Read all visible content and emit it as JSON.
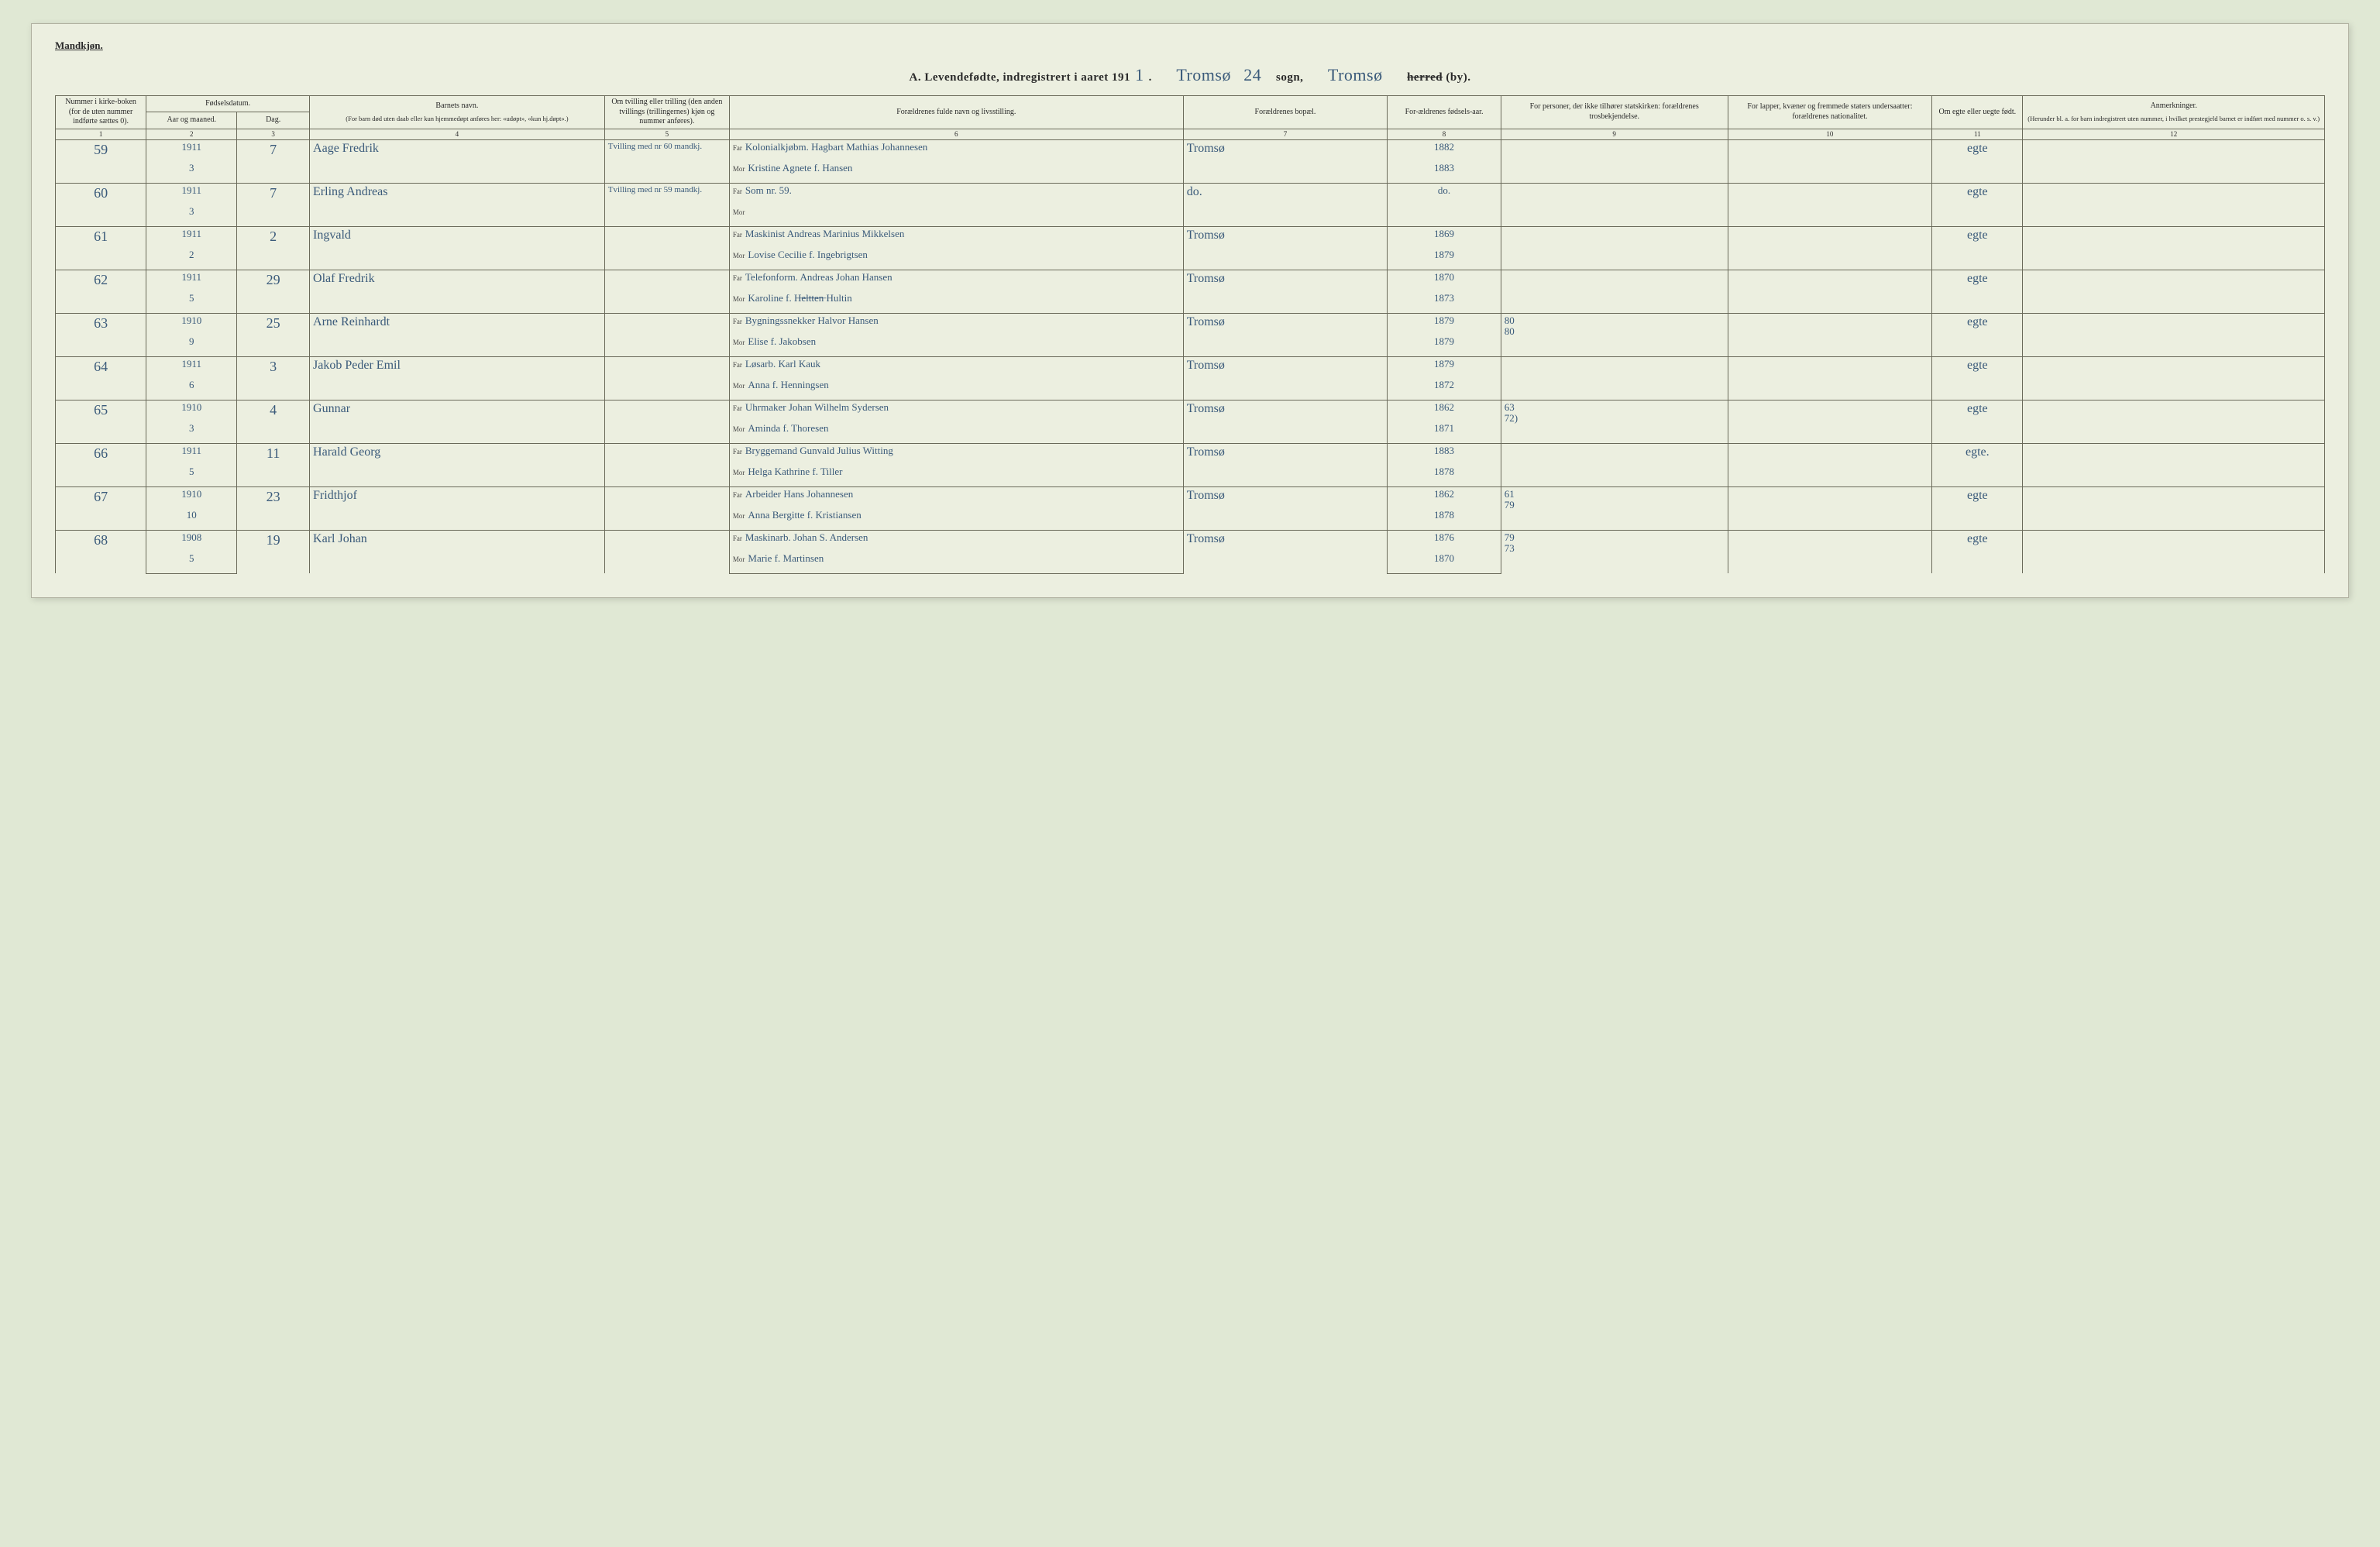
{
  "header": {
    "gender_label": "Mandkjøn.",
    "title_prefix": "A. Levendefødte, indregistrert i aaret 191",
    "year_suffix": "1",
    "title_period": ".",
    "sogn_hand": "Tromsø",
    "page_number_hand": "24",
    "sogn_label": "sogn,",
    "herred_hand": "Tromsø",
    "herred_struck": "herred",
    "by_label": "(by)."
  },
  "columns": {
    "c1": "Nummer i kirke-boken (for de uten nummer indførte sættes 0).",
    "c2_group": "Fødselsdatum.",
    "c2": "Aar og maaned.",
    "c3": "Dag.",
    "c4_title": "Barnets navn.",
    "c4_sub": "(For barn død uten daab eller kun hjemmedøpt anføres her: «udøpt», «kun hj.døpt».)",
    "c5": "Om tvilling eller trilling (den anden tvillings (trillingernes) kjøn og nummer anføres).",
    "c6": "Forældrenes fulde navn og livsstilling.",
    "c7": "Forældrenes bopæl.",
    "c8": "For-ældrenes fødsels-aar.",
    "c9": "For personer, der ikke tilhører statskirken: forældrenes trosbekjendelse.",
    "c10": "For lapper, kvæner og fremmede staters undersaatter: forældrenes nationalitet.",
    "c11": "Om egte eller uegte født.",
    "c12_title": "Anmerkninger.",
    "c12_sub": "(Herunder bl. a. for barn indregistrert uten nummer, i hvilket prestegjeld barnet er indført med nummer o. s. v.)"
  },
  "colnums": [
    "1",
    "2",
    "3",
    "4",
    "5",
    "6",
    "7",
    "8",
    "9",
    "10",
    "11",
    "12"
  ],
  "parent_labels": {
    "far": "Far",
    "mor": "Mor"
  },
  "rows": [
    {
      "num": "59",
      "year": "1911",
      "month": "3",
      "day": "7",
      "name": "Aage Fredrik",
      "twin": "Tvilling med nr 60 mandkj.",
      "far": "Kolonialkjøbm. Hagbart Mathias Johannesen",
      "mor": "Kristine Agnete f. Hansen",
      "bopel": "Tromsø",
      "far_year": "1882",
      "mor_year": "1883",
      "col9": "",
      "col10": "",
      "egte": "egte",
      "anm": ""
    },
    {
      "num": "60",
      "year": "1911",
      "month": "3",
      "day": "7",
      "name": "Erling Andreas",
      "twin": "Tvilling med nr 59 mandkj.",
      "far": "Som nr. 59.",
      "mor": "",
      "bopel": "do.",
      "far_year": "do.",
      "mor_year": "",
      "col9": "",
      "col10": "",
      "egte": "egte",
      "anm": ""
    },
    {
      "num": "61",
      "year": "1911",
      "month": "2",
      "day": "2",
      "name": "Ingvald",
      "twin": "",
      "far": "Maskinist Andreas Marinius Mikkelsen",
      "mor": "Lovise Cecilie f. Ingebrigtsen",
      "bopel": "Tromsø",
      "far_year": "1869",
      "mor_year": "1879",
      "col9": "",
      "col10": "",
      "egte": "egte",
      "anm": ""
    },
    {
      "num": "62",
      "year": "1911",
      "month": "5",
      "day": "29",
      "name": "Olaf Fredrik",
      "twin": "",
      "far": "Telefonform. Andreas Johan Hansen",
      "mor": "Karoline f. H̶e̶l̶t̶t̶e̶n̶ Hultin",
      "bopel": "Tromsø",
      "far_year": "1870",
      "mor_year": "1873",
      "col9": "",
      "col10": "",
      "egte": "egte",
      "anm": ""
    },
    {
      "num": "63",
      "year": "1910",
      "month": "9",
      "day": "25",
      "name": "Arne Reinhardt",
      "twin": "",
      "far": "Bygningssnekker Halvor Hansen",
      "mor": "Elise f. Jakobsen",
      "bopel": "Tromsø",
      "far_year": "1879",
      "mor_year": "1879",
      "col9": "80\n80",
      "col10": "",
      "egte": "egte",
      "anm": ""
    },
    {
      "num": "64",
      "year": "1911",
      "month": "6",
      "day": "3",
      "name": "Jakob Peder Emil",
      "twin": "",
      "far": "Løsarb. Karl Kauk",
      "mor": "Anna f. Henningsen",
      "bopel": "Tromsø",
      "far_year": "1879",
      "mor_year": "1872",
      "col9": "",
      "col10": "",
      "egte": "egte",
      "anm": ""
    },
    {
      "num": "65",
      "year": "1910",
      "month": "3",
      "day": "4",
      "name": "Gunnar",
      "twin": "",
      "far": "Uhrmaker Johan Wilhelm Sydersen",
      "mor": "Aminda f. Thoresen",
      "bopel": "Tromsø",
      "far_year": "1862",
      "mor_year": "1871",
      "col9": "63\n72)",
      "col10": "",
      "egte": "egte",
      "anm": ""
    },
    {
      "num": "66",
      "year": "1911",
      "month": "5",
      "day": "11",
      "name": "Harald Georg",
      "twin": "",
      "far": "Bryggemand Gunvald Julius Witting",
      "mor": "Helga Kathrine f. Tiller",
      "bopel": "Tromsø",
      "far_year": "1883",
      "mor_year": "1878",
      "col9": "",
      "col10": "",
      "egte": "egte.",
      "anm": ""
    },
    {
      "num": "67",
      "year": "1910",
      "month": "10",
      "day": "23",
      "name": "Fridthjof",
      "twin": "",
      "far": "Arbeider Hans Johannesen",
      "mor": "Anna Bergitte f. Kristiansen",
      "bopel": "Tromsø",
      "far_year": "1862",
      "mor_year": "1878",
      "col9": "61\n79",
      "col10": "",
      "egte": "egte",
      "anm": ""
    },
    {
      "num": "68",
      "year": "1908",
      "month": "5",
      "day": "19",
      "name": "Karl Johan",
      "twin": "",
      "far": "Maskinarb. Johan S. Andersen",
      "mor": "Marie f. Martinsen",
      "bopel": "Tromsø",
      "far_year": "1876",
      "mor_year": "1870",
      "col9": "79\n73",
      "col10": "",
      "egte": "egte",
      "anm": ""
    }
  ],
  "styling": {
    "page_bg": "#ecefe0",
    "body_bg": "#e0e8d4",
    "border_color": "#6a6a5a",
    "hand_color": "#3a5a7a",
    "print_color": "#2a2a2a",
    "hand_font": "Brush Script MT / Segoe Script",
    "print_font": "Georgia / Times",
    "header_fontsize": 10,
    "hand_fontsize": 16,
    "colnum_fontsize": 9
  }
}
